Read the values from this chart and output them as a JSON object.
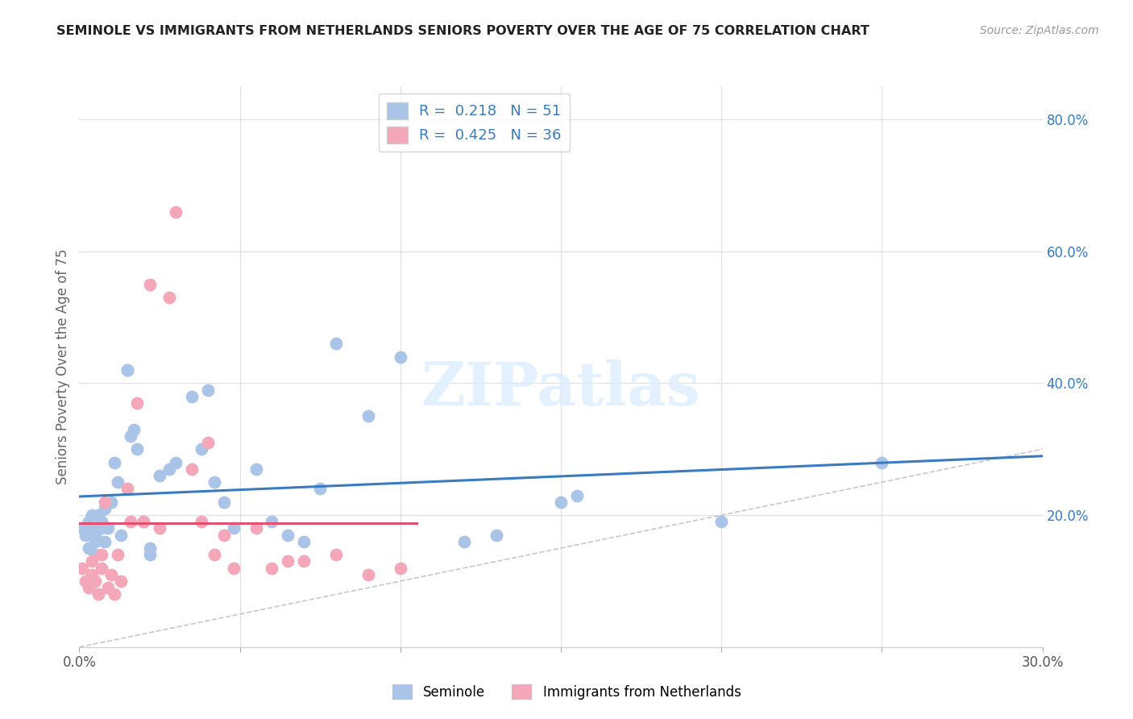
{
  "title": "SEMINOLE VS IMMIGRANTS FROM NETHERLANDS SENIORS POVERTY OVER THE AGE OF 75 CORRELATION CHART",
  "source": "Source: ZipAtlas.com",
  "ylabel": "Seniors Poverty Over the Age of 75",
  "xlim": [
    0.0,
    0.3
  ],
  "ylim": [
    0.0,
    0.85
  ],
  "seminole_color": "#aac4e8",
  "netherlands_color": "#f4a7b9",
  "trend_seminole_color": "#3a7abf",
  "trend_netherlands_color": "#e05070",
  "diagonal_color": "#c8c8c8",
  "legend_R_seminole": "0.218",
  "legend_N_seminole": "51",
  "legend_R_netherlands": "0.425",
  "legend_N_netherlands": "36",
  "seminole_x": [
    0.001,
    0.002,
    0.003,
    0.003,
    0.004,
    0.004,
    0.005,
    0.005,
    0.005,
    0.006,
    0.006,
    0.007,
    0.007,
    0.008,
    0.008,
    0.009,
    0.01,
    0.011,
    0.012,
    0.013,
    0.015,
    0.015,
    0.016,
    0.017,
    0.018,
    0.02,
    0.022,
    0.022,
    0.025,
    0.028,
    0.03,
    0.035,
    0.038,
    0.04,
    0.042,
    0.045,
    0.048,
    0.055,
    0.06,
    0.065,
    0.07,
    0.075,
    0.08,
    0.09,
    0.1,
    0.12,
    0.13,
    0.15,
    0.155,
    0.2,
    0.25
  ],
  "seminole_y": [
    0.18,
    0.17,
    0.15,
    0.19,
    0.2,
    0.18,
    0.16,
    0.14,
    0.17,
    0.18,
    0.2,
    0.19,
    0.18,
    0.21,
    0.16,
    0.18,
    0.22,
    0.28,
    0.25,
    0.17,
    0.42,
    0.42,
    0.32,
    0.33,
    0.3,
    0.19,
    0.15,
    0.14,
    0.26,
    0.27,
    0.28,
    0.38,
    0.3,
    0.39,
    0.25,
    0.22,
    0.18,
    0.27,
    0.19,
    0.17,
    0.16,
    0.24,
    0.46,
    0.35,
    0.44,
    0.16,
    0.17,
    0.22,
    0.23,
    0.19,
    0.28
  ],
  "netherlands_x": [
    0.001,
    0.002,
    0.003,
    0.004,
    0.004,
    0.005,
    0.006,
    0.007,
    0.007,
    0.008,
    0.009,
    0.01,
    0.011,
    0.012,
    0.013,
    0.015,
    0.016,
    0.018,
    0.02,
    0.022,
    0.025,
    0.028,
    0.03,
    0.035,
    0.038,
    0.04,
    0.042,
    0.045,
    0.048,
    0.055,
    0.06,
    0.065,
    0.07,
    0.08,
    0.09,
    0.1
  ],
  "netherlands_y": [
    0.12,
    0.1,
    0.09,
    0.11,
    0.13,
    0.1,
    0.08,
    0.12,
    0.14,
    0.22,
    0.09,
    0.11,
    0.08,
    0.14,
    0.1,
    0.24,
    0.19,
    0.37,
    0.19,
    0.55,
    0.18,
    0.53,
    0.66,
    0.27,
    0.19,
    0.31,
    0.14,
    0.17,
    0.12,
    0.18,
    0.12,
    0.13,
    0.13,
    0.14,
    0.11,
    0.12
  ],
  "background_color": "#ffffff",
  "grid_color": "#e0e0e8"
}
